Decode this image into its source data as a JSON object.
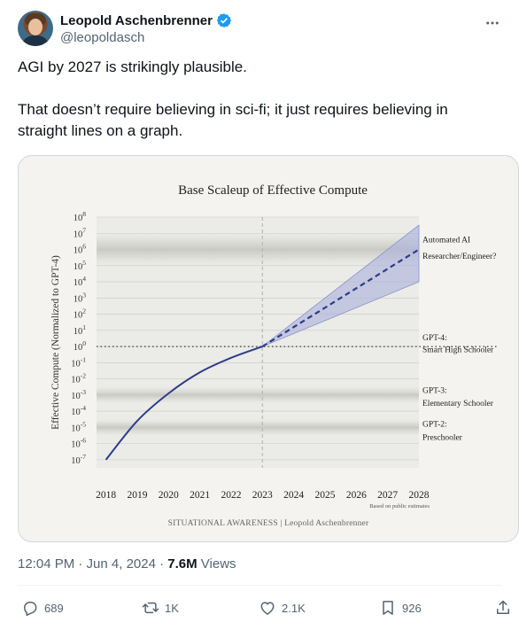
{
  "author": {
    "display_name": "Leopold Aschenbrenner",
    "handle": "@leopoldasch"
  },
  "tweet": {
    "line1": "AGI by 2027 is strikingly plausible.",
    "line2": "That doesn’t require believing in sci-fi; it just requires believing in straight lines on a graph."
  },
  "chart_data": {
    "type": "line",
    "title": "Base Scaleup of Effective Compute",
    "ylabel": "Effective Compute (Normalized to GPT-4)",
    "xlabel": "",
    "x_ticks": [
      "2018",
      "2019",
      "2020",
      "2021",
      "2022",
      "2023",
      "2024",
      "2025",
      "2026",
      "2027",
      "2028"
    ],
    "y_scale": "log10",
    "y_ticks": [
      {
        "base": "10",
        "exp": "8"
      },
      {
        "base": "10",
        "exp": "7"
      },
      {
        "base": "10",
        "exp": "6"
      },
      {
        "base": "10",
        "exp": "5"
      },
      {
        "base": "10",
        "exp": "4"
      },
      {
        "base": "10",
        "exp": "3"
      },
      {
        "base": "10",
        "exp": "2"
      },
      {
        "base": "10",
        "exp": "1"
      },
      {
        "base": "10",
        "exp": "0"
      },
      {
        "base": "10",
        "exp": "-1"
      },
      {
        "base": "10",
        "exp": "-2"
      },
      {
        "base": "10",
        "exp": "-3"
      },
      {
        "base": "10",
        "exp": "-4"
      },
      {
        "base": "10",
        "exp": "-5"
      },
      {
        "base": "10",
        "exp": "-6"
      },
      {
        "base": "10",
        "exp": "-7"
      }
    ],
    "ylim_exp": [
      -7.5,
      8
    ],
    "xlim": [
      2017.7,
      2028
    ],
    "historical": {
      "x": [
        2018,
        2019,
        2020,
        2021,
        2022,
        2023
      ],
      "y_exp": [
        -7,
        -4.6,
        -2.9,
        -1.6,
        -0.7,
        0
      ]
    },
    "projection": {
      "x": [
        2023,
        2028
      ],
      "y_exp": [
        0,
        6
      ]
    },
    "band_upper": {
      "x": [
        2023,
        2028
      ],
      "y_exp": [
        0,
        7.5
      ]
    },
    "band_lower": {
      "x": [
        2023,
        2028
      ],
      "y_exp": [
        0,
        4
      ]
    },
    "reference_line_y_exp": 0,
    "vertical_marker_x": 2023,
    "annotations": [
      {
        "text": "Automated AI",
        "y_exp": 6.6
      },
      {
        "text": "Researcher/Engineer?",
        "y_exp": 5.6
      },
      {
        "text": "GPT-4:",
        "y_exp": 0.55
      },
      {
        "text": "Smart High Schooler",
        "y_exp": -0.2
      },
      {
        "text": "GPT-3:",
        "y_exp": -2.7
      },
      {
        "text": "Elementary Schooler",
        "y_exp": -3.5
      },
      {
        "text": "GPT-2:",
        "y_exp": -4.8
      },
      {
        "text": "Preschooler",
        "y_exp": -5.6
      }
    ],
    "bands": [
      {
        "from_exp": 5,
        "to_exp": 7
      },
      {
        "from_exp": -3.5,
        "to_exp": -2.5
      },
      {
        "from_exp": -5.5,
        "to_exp": -4.5
      }
    ],
    "note": "Based on public estimates",
    "footer": "SITUATIONAL AWARENESS | Leopold Aschenbrenner",
    "colors": {
      "line": "#2e3b8a",
      "band": "#a9b0dc",
      "grid": "#c9c9c4"
    }
  },
  "meta": {
    "timestamp": "12:04 PM · Jun 4, 2024",
    "separator": " · ",
    "views_count": "7.6M",
    "views_label": " Views"
  },
  "actions": {
    "replies": "689",
    "reposts": "1K",
    "likes": "2.1K",
    "bookmarks": "926"
  },
  "icons": [
    "verified-badge-icon",
    "more-options-icon",
    "reply-icon",
    "repost-icon",
    "like-icon",
    "bookmark-icon",
    "share-icon"
  ]
}
